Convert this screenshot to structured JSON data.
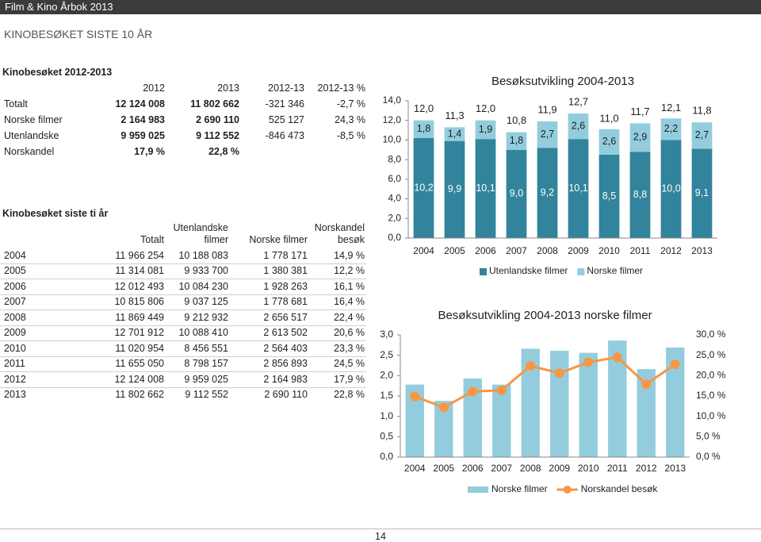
{
  "header": {
    "title": "Film & Kino Årbok 2013"
  },
  "section_title": "KINOBESØKET SISTE 10 ÅR",
  "table1": {
    "title": "Kinobesøket 2012-2013",
    "columns": [
      "2012",
      "2013",
      "2012-13",
      "2012-13 %"
    ],
    "rows": [
      [
        "Totalt",
        "12 124 008",
        "11 802 662",
        "-321 346",
        "-2,7 %"
      ],
      [
        "Norske filmer",
        "2 164 983",
        "2 690 110",
        "525 127",
        "24,3 %"
      ],
      [
        "Utenlandske",
        "9 959 025",
        "9 112 552",
        "-846 473",
        "-8,5 %"
      ],
      [
        "Norskandel",
        "17,9 %",
        "22,8 %"
      ]
    ]
  },
  "table2": {
    "title": "Kinobesøket siste ti år",
    "columns": [
      "Totalt",
      "Utenlandske filmer",
      "Norske filmer",
      "Norskandel besøk"
    ],
    "rows": [
      [
        "2004",
        "11 966 254",
        "10 188 083",
        "1 778 171",
        "14,9 %"
      ],
      [
        "2005",
        "11 314 081",
        "9 933 700",
        "1 380 381",
        "12,2 %"
      ],
      [
        "2006",
        "12 012 493",
        "10 084 230",
        "1 928 263",
        "16,1 %"
      ],
      [
        "2007",
        "10 815 806",
        "9 037 125",
        "1 778 681",
        "16,4 %"
      ],
      [
        "2008",
        "11 869 449",
        "9 212 932",
        "2 656 517",
        "22,4 %"
      ],
      [
        "2009",
        "12 701 912",
        "10 088 410",
        "2 613 502",
        "20,6 %"
      ],
      [
        "2010",
        "11 020 954",
        "8 456 551",
        "2 564 403",
        "23,3 %"
      ],
      [
        "2011",
        "11 655 050",
        "8 798 157",
        "2 856 893",
        "24,5 %"
      ],
      [
        "2012",
        "12 124 008",
        "9 959 025",
        "2 164 983",
        "17,9 %"
      ],
      [
        "2013",
        "11 802 662",
        "9 112 552",
        "2 690 110",
        "22,8 %"
      ]
    ]
  },
  "chart_data": [
    {
      "type": "bar",
      "stacked": true,
      "title": "Besøksutvikling 2004-2013",
      "categories": [
        "2004",
        "2005",
        "2006",
        "2007",
        "2008",
        "2009",
        "2010",
        "2011",
        "2012",
        "2013"
      ],
      "series": [
        {
          "name": "Utenlandske filmer",
          "color": "#31849b",
          "values": [
            10.2,
            9.9,
            10.1,
            9.0,
            9.2,
            10.1,
            8.5,
            8.8,
            10.0,
            9.1
          ],
          "value_labels": [
            "10,2",
            "9,9",
            "10,1",
            "9,0",
            "9,2",
            "10,1",
            "8,5",
            "8,8",
            "10,0",
            "9,1"
          ]
        },
        {
          "name": "Norske filmer",
          "color": "#93cddd",
          "values": [
            1.8,
            1.4,
            1.9,
            1.8,
            2.7,
            2.6,
            2.6,
            2.9,
            2.2,
            2.7
          ],
          "value_labels": [
            "1,8",
            "1,4",
            "1,9",
            "1,8",
            "2,7",
            "2,6",
            "2,6",
            "2,9",
            "2,2",
            "2,7"
          ]
        }
      ],
      "total_values": [
        12.0,
        11.3,
        12.0,
        10.8,
        11.9,
        12.7,
        11.0,
        11.7,
        12.1,
        11.8
      ],
      "total_labels": [
        "12,0",
        "11,3",
        "12,0",
        "10,8",
        "11,9",
        "12,7",
        "11,0",
        "11,7",
        "12,1",
        "11,8"
      ],
      "ylim": [
        0,
        14
      ],
      "yticks": [
        {
          "value": 0,
          "label": "0,0"
        },
        {
          "value": 2,
          "label": "2,0"
        },
        {
          "value": 4,
          "label": "4,0"
        },
        {
          "value": 6,
          "label": "6,0"
        },
        {
          "value": 8,
          "label": "8,0"
        },
        {
          "value": 10,
          "label": "10,0"
        },
        {
          "value": 12,
          "label": "12,0"
        },
        {
          "value": 14,
          "label": "14,0"
        }
      ],
      "legend": "bottom"
    },
    {
      "type": "bar",
      "stacked": false,
      "title": "Besøksutvikling 2004-2013 norske filmer",
      "categories": [
        "2004",
        "2005",
        "2006",
        "2007",
        "2008",
        "2009",
        "2010",
        "2011",
        "2012",
        "2013"
      ],
      "series": [
        {
          "name": "Norske filmer",
          "color": "#93cddd",
          "values": [
            1.78,
            1.38,
            1.93,
            1.78,
            2.66,
            2.61,
            2.56,
            2.86,
            2.16,
            2.69
          ]
        },
        {
          "name": "Norskandel besøk",
          "color": "#f79646",
          "type": "line",
          "axis": "y2",
          "values": [
            14.9,
            12.2,
            16.1,
            16.4,
            22.4,
            20.6,
            23.3,
            24.5,
            17.9,
            22.8
          ]
        }
      ],
      "ylim": [
        0,
        3
      ],
      "yticks": [
        {
          "value": 0,
          "label": "0,0"
        },
        {
          "value": 0.5,
          "label": "0,5"
        },
        {
          "value": 1,
          "label": "1,0"
        },
        {
          "value": 1.5,
          "label": "1,5"
        },
        {
          "value": 2,
          "label": "2,0"
        },
        {
          "value": 2.5,
          "label": "2,5"
        },
        {
          "value": 3,
          "label": "3,0"
        }
      ],
      "y2lim": [
        0,
        30
      ],
      "y2ticks": [
        {
          "value": 0,
          "label": "0,0 %"
        },
        {
          "value": 5,
          "label": "5,0 %"
        },
        {
          "value": 10,
          "label": "10,0 %"
        },
        {
          "value": 15,
          "label": "15,0 %"
        },
        {
          "value": 20,
          "label": "20,0 %"
        },
        {
          "value": 25,
          "label": "25,0 %"
        },
        {
          "value": 30,
          "label": "30,0 %"
        }
      ],
      "legend": "bottom"
    }
  ],
  "page_number": "14"
}
